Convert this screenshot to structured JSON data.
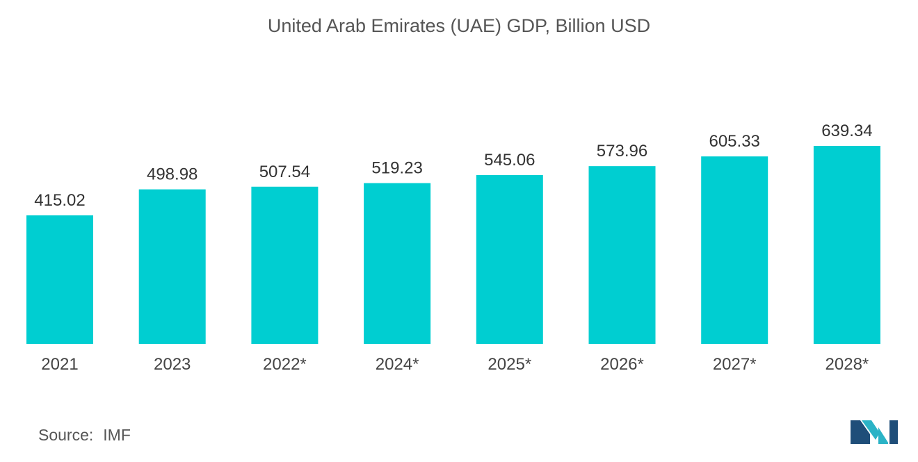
{
  "title": "United Arab Emirates (UAE) GDP, Billion USD",
  "source": {
    "label": "Source:",
    "value": "IMF"
  },
  "colors": {
    "bar": "#00CED1",
    "logo_dark": "#1f4e79",
    "logo_light": "#2ab3c6"
  },
  "chart_data": {
    "type": "bar",
    "title": "United Arab Emirates (UAE) GDP, Billion USD",
    "categories": [
      "2021",
      "2023",
      "2022*",
      "2024*",
      "2025*",
      "2026*",
      "2027*",
      "2028*"
    ],
    "values": [
      415.02,
      498.98,
      507.54,
      519.23,
      545.06,
      573.96,
      605.33,
      639.34
    ],
    "value_labels": [
      "415.02",
      "498.98",
      "507.54",
      "519.23",
      "545.06",
      "573.96",
      "605.33",
      "639.34"
    ],
    "xlabel": "",
    "ylabel": "",
    "ylim": [
      0,
      639.34
    ],
    "grid": false,
    "legend": "none"
  }
}
